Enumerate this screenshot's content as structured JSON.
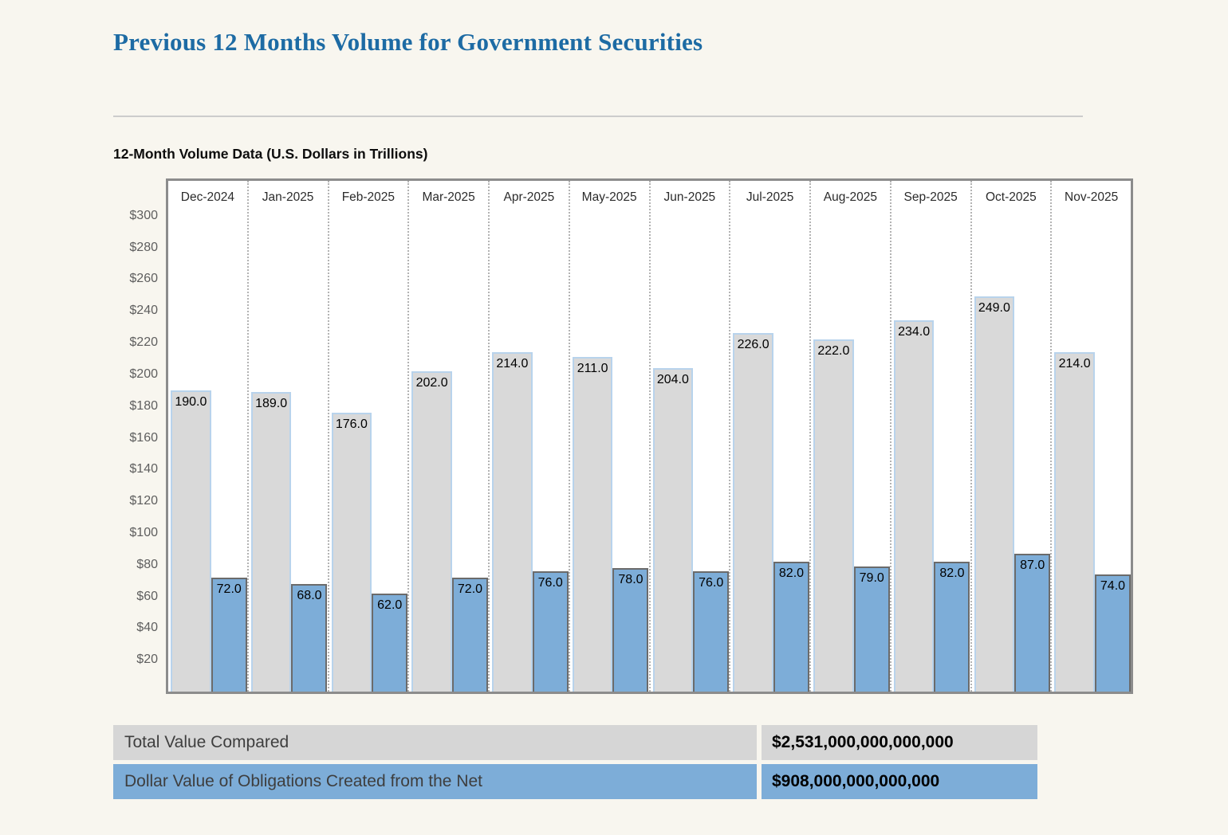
{
  "page": {
    "title": "Previous 12 Months Volume for Government Securities",
    "chart_heading": "12-Month Volume Data (U.S. Dollars in Trillions)"
  },
  "chart_data": {
    "type": "bar",
    "title": "12-Month Volume Data (U.S. Dollars in Trillions)",
    "categories": [
      "Dec-2024",
      "Jan-2025",
      "Feb-2025",
      "Mar-2025",
      "Apr-2025",
      "May-2025",
      "Jun-2025",
      "Jul-2025",
      "Aug-2025",
      "Sep-2025",
      "Oct-2025",
      "Nov-2025"
    ],
    "series": [
      {
        "name": "Total Value Compared",
        "values": [
          190,
          189,
          176,
          202,
          214,
          211,
          204,
          226,
          222,
          234,
          249,
          214
        ],
        "fill": "#d9d9d9",
        "border": "#b8d3ec"
      },
      {
        "name": "Dollar Value of Obligations Created from the Net",
        "values": [
          72,
          68,
          62,
          72,
          76,
          78,
          76,
          82,
          79,
          82,
          87,
          74
        ],
        "fill": "#7dadd8",
        "border": "#6b6b6b"
      }
    ],
    "value_label_decimals": 1,
    "ytick_prefix": "$",
    "yticks": [
      20,
      40,
      60,
      80,
      100,
      120,
      140,
      160,
      180,
      200,
      220,
      240,
      260,
      280,
      300
    ],
    "ylim": [
      0,
      322
    ],
    "grid": "vertical-dotted-column-separators",
    "plot_background": "#ffffff",
    "legend_position": "bottom-table"
  },
  "summary_table": {
    "rows": [
      {
        "label": "Total Value Compared",
        "value": "$2,531,000,000,000,000",
        "color": "#d6d6d6"
      },
      {
        "label": "Dollar Value of Obligations Created from the Net",
        "value": "$908,000,000,000,000",
        "color": "#7dadd8"
      }
    ]
  }
}
